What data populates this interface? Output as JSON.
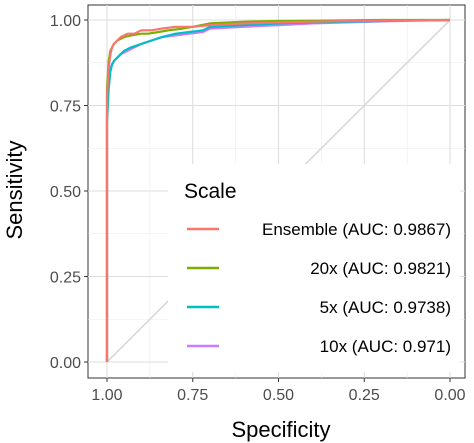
{
  "chart_data": {
    "type": "line",
    "xlabel": "Specificity",
    "ylabel": "Sensitivity",
    "x_reversed": true,
    "xlim": [
      1.0,
      0.0
    ],
    "ylim": [
      0.0,
      1.0
    ],
    "x_ticks": [
      1.0,
      0.75,
      0.5,
      0.25,
      0.0
    ],
    "x_tick_labels": [
      "1.00",
      "0.75",
      "0.50",
      "0.25",
      "0.00"
    ],
    "y_ticks": [
      0.0,
      0.25,
      0.5,
      0.75,
      1.0
    ],
    "y_tick_labels": [
      "0.00",
      "0.25",
      "0.50",
      "0.75",
      "1.00"
    ],
    "grid": true,
    "reference_line": {
      "color": "#d9d9d9",
      "points": [
        [
          1.0,
          0.0
        ],
        [
          0.0,
          1.0
        ]
      ]
    },
    "legend": {
      "title": "Scale",
      "placement": "bottom-right"
    },
    "series": [
      {
        "name": "Ensemble (AUC: 0.9867)",
        "color": "#F8766D",
        "x": [
          1.0,
          1.0,
          0.995,
          0.99,
          0.985,
          0.98,
          0.97,
          0.96,
          0.94,
          0.92,
          0.9,
          0.87,
          0.84,
          0.8,
          0.75,
          0.7,
          0.6,
          0.5,
          0.4,
          0.3,
          0.2,
          0.1,
          0.0
        ],
        "y": [
          0.0,
          0.78,
          0.86,
          0.9,
          0.92,
          0.93,
          0.94,
          0.95,
          0.96,
          0.96,
          0.97,
          0.97,
          0.975,
          0.98,
          0.98,
          0.985,
          0.99,
          0.993,
          0.995,
          0.997,
          0.998,
          0.999,
          1.0
        ]
      },
      {
        "name": "20x (AUC: 0.9821)",
        "color": "#7CAE00",
        "x": [
          1.0,
          1.0,
          0.995,
          0.99,
          0.985,
          0.98,
          0.97,
          0.96,
          0.95,
          0.93,
          0.9,
          0.88,
          0.85,
          0.82,
          0.78,
          0.75,
          0.7,
          0.6,
          0.5,
          0.4,
          0.3,
          0.2,
          0.1,
          0.0
        ],
        "y": [
          0.0,
          0.8,
          0.88,
          0.91,
          0.92,
          0.93,
          0.94,
          0.945,
          0.95,
          0.955,
          0.96,
          0.96,
          0.965,
          0.97,
          0.975,
          0.98,
          0.99,
          0.995,
          0.997,
          0.998,
          0.999,
          1.0,
          1.0,
          1.0
        ]
      },
      {
        "name": "5x (AUC: 0.9738)",
        "color": "#00BFC4",
        "x": [
          1.0,
          1.0,
          0.995,
          0.99,
          0.985,
          0.98,
          0.97,
          0.96,
          0.95,
          0.93,
          0.9,
          0.87,
          0.84,
          0.8,
          0.76,
          0.72,
          0.7,
          0.6,
          0.5,
          0.4,
          0.3,
          0.2,
          0.1,
          0.0
        ],
        "y": [
          0.0,
          0.7,
          0.8,
          0.85,
          0.87,
          0.88,
          0.89,
          0.9,
          0.91,
          0.92,
          0.93,
          0.94,
          0.95,
          0.96,
          0.965,
          0.97,
          0.98,
          0.985,
          0.99,
          0.993,
          0.995,
          0.997,
          0.999,
          1.0
        ]
      },
      {
        "name": "10x (AUC: 0.971)",
        "color": "#C77CFF",
        "x": [
          1.0,
          1.0,
          0.995,
          0.99,
          0.985,
          0.98,
          0.97,
          0.96,
          0.94,
          0.92,
          0.9,
          0.87,
          0.84,
          0.8,
          0.76,
          0.72,
          0.7,
          0.6,
          0.5,
          0.4,
          0.3,
          0.2,
          0.1,
          0.0
        ],
        "y": [
          0.0,
          0.72,
          0.82,
          0.86,
          0.87,
          0.88,
          0.89,
          0.9,
          0.91,
          0.92,
          0.93,
          0.94,
          0.95,
          0.955,
          0.96,
          0.965,
          0.975,
          0.98,
          0.985,
          0.99,
          0.993,
          0.996,
          0.998,
          1.0
        ]
      }
    ]
  }
}
